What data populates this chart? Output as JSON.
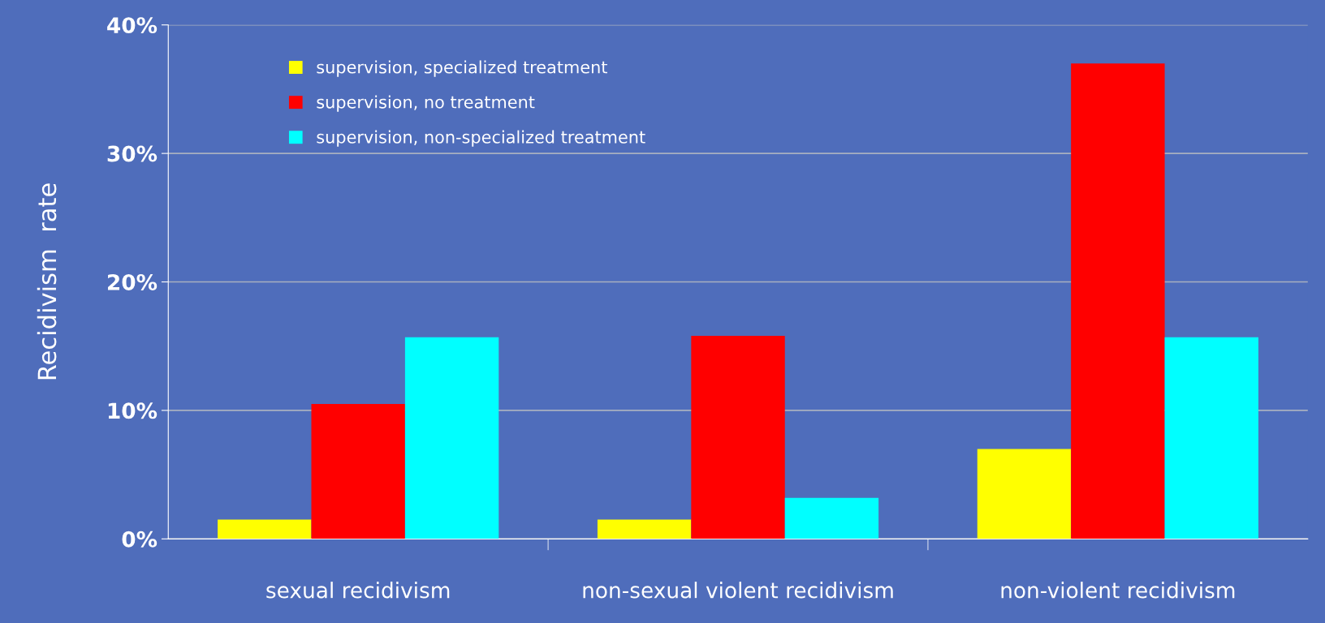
{
  "chart_data": {
    "type": "bar",
    "ylabel": "Recidivism  rate",
    "categories": [
      "sexual recidivism",
      "non-sexual violent recidivism",
      "non-violent recidivism"
    ],
    "series": [
      {
        "name": "supervision, specialized treatment",
        "color": "#ffff00",
        "values": [
          1.5,
          1.5,
          7.0
        ]
      },
      {
        "name": "supervision, no treatment",
        "color": "#ff0000",
        "values": [
          10.5,
          15.8,
          37.0
        ]
      },
      {
        "name": "supervision, non-specialized treatment",
        "color": "#00ffff",
        "values": [
          15.7,
          3.2,
          15.7
        ]
      }
    ],
    "ylim": [
      0,
      40
    ],
    "yticks": [
      {
        "value": 0,
        "label": "0%"
      },
      {
        "value": 10,
        "label": "10%"
      },
      {
        "value": 20,
        "label": "20%"
      },
      {
        "value": 30,
        "label": "30%"
      },
      {
        "value": 40,
        "label": "40%"
      }
    ],
    "grid": "y",
    "legend": "top left"
  }
}
